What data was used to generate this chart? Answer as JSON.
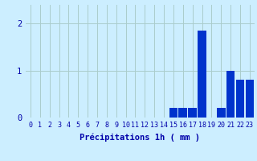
{
  "values": [
    0,
    0,
    0,
    0,
    0,
    0,
    0,
    0,
    0,
    0,
    0,
    0,
    0,
    0,
    0,
    0.2,
    0.2,
    0.2,
    1.85,
    0,
    0.2,
    1.0,
    0.8,
    0.8
  ],
  "bar_color": "#0033CC",
  "bg_color": "#CCEEFF",
  "grid_color": "#AACCCC",
  "axis_color": "#0000AA",
  "xlabel": "Précipitations 1h ( mm )",
  "ylim": [
    0,
    2.4
  ],
  "yticks": [
    0,
    1,
    2
  ],
  "xtick_labels": [
    "0",
    "1",
    "2",
    "3",
    "4",
    "5",
    "6",
    "7",
    "8",
    "9",
    "10",
    "11",
    "12",
    "13",
    "14",
    "15",
    "16",
    "17",
    "18",
    "19",
    "20",
    "21",
    "22",
    "23"
  ],
  "xlabel_fontsize": 7.5,
  "tick_fontsize": 6.0,
  "bar_width": 0.9
}
